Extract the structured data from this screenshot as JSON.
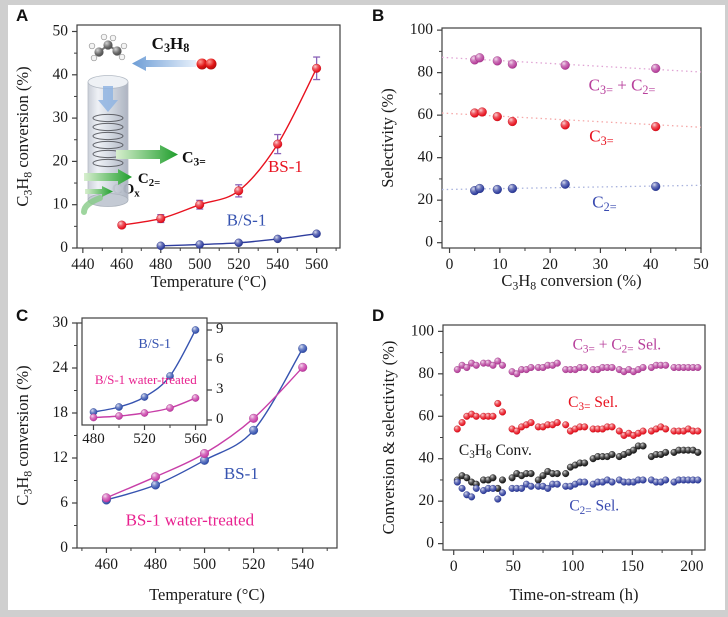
{
  "page": {
    "background": "#cfcfcf",
    "canvas_color": "#ffffff"
  },
  "chart_data": [
    {
      "panel_label": "A",
      "type": "line",
      "xlabel": "Temperature (°C)",
      "ylabel": "C_{3}H_{8} conversion (%)",
      "xlim": [
        437,
        572
      ],
      "ylim": [
        0,
        51.5
      ],
      "xticks": [
        440,
        460,
        480,
        500,
        520,
        540,
        560
      ],
      "yticks": [
        0,
        10,
        20,
        30,
        40,
        50
      ],
      "xminor": 10,
      "yminor": 5,
      "series": [
        {
          "name": "BS-1",
          "color": "#e8121f",
          "line": true,
          "smooth": true,
          "r": 4.3,
          "x": [
            460,
            480,
            500,
            520,
            540,
            560
          ],
          "y": [
            5.3,
            6.8,
            10.0,
            13.2,
            24.0,
            41.5
          ],
          "err": [
            0.6,
            0.9,
            1.0,
            1.4,
            2.2,
            2.6
          ],
          "err_color": "#8a63b8"
        },
        {
          "name": "B/S-1",
          "color": "#2e3d9e",
          "line": true,
          "smooth": true,
          "r": 4.0,
          "x": [
            480,
            500,
            520,
            540,
            560
          ],
          "y": [
            0.5,
            0.8,
            1.2,
            2.1,
            3.3
          ]
        }
      ],
      "annotations": [
        {
          "text": "C_{3}H_{8}",
          "x": 485,
          "y": 46.0,
          "color": "#111111",
          "size": 17,
          "bold": true
        },
        {
          "text": "C_{3=}",
          "x": 497,
          "y": 19.8,
          "color": "#111111",
          "size": 16,
          "bold": true
        },
        {
          "text": "C_{2=}",
          "x": 474,
          "y": 15.0,
          "color": "#111111",
          "size": 15,
          "bold": true
        },
        {
          "text": "CO_{x}",
          "x": 462,
          "y": 12.6,
          "color": "#111111",
          "size": 15,
          "bold": true
        },
        {
          "text": "BS-1",
          "x": 544,
          "y": 17.5,
          "color": "#e8121f",
          "size": 17
        },
        {
          "text": "B/S-1",
          "x": 524,
          "y": 5.2,
          "color": "#3653b0",
          "size": 17
        }
      ]
    },
    {
      "panel_label": "B",
      "type": "scatter",
      "xlabel": "C_{3}H_{8} conversion (%)",
      "ylabel": "Selectivity (%)",
      "xlim": [
        -1.5,
        50
      ],
      "ylim": [
        -2.5,
        101
      ],
      "xticks": [
        0,
        10,
        20,
        30,
        40,
        50
      ],
      "yticks": [
        0,
        20,
        40,
        60,
        80,
        100
      ],
      "xminor": 5,
      "yminor": 10,
      "series": [
        {
          "name": "C3= + C2=",
          "color": "#b8409c",
          "r": 4.4,
          "x": [
            5,
            6,
            9.5,
            12.5,
            23,
            41
          ],
          "y": [
            86,
            87,
            85.5,
            84,
            83.5,
            82
          ],
          "trend": {
            "x": [
              -1.5,
              50
            ],
            "y": [
              87.2,
              80.3
            ],
            "color": "#e0a4d4"
          }
        },
        {
          "name": "C3=",
          "color": "#e8121f",
          "r": 4.4,
          "x": [
            5,
            6.5,
            9.5,
            12.5,
            23,
            41
          ],
          "y": [
            61,
            61.5,
            59.3,
            57,
            55.4,
            54.6
          ],
          "trend": {
            "x": [
              -1.5,
              50
            ],
            "y": [
              61,
              54.3
            ],
            "color": "#f5a8a8"
          }
        },
        {
          "name": "C2=",
          "color": "#2e3d9e",
          "r": 4.4,
          "x": [
            5,
            6,
            9.5,
            12.5,
            23,
            41
          ],
          "y": [
            24.5,
            25.5,
            25,
            25.5,
            27.5,
            26.5
          ],
          "trend": {
            "x": [
              -1.5,
              50
            ],
            "y": [
              25,
              27
            ],
            "color": "#a8b2dd"
          }
        }
      ],
      "annotations": [
        {
          "text": "C_{3=} + C_{2=}",
          "x": 34.3,
          "y": 71.5,
          "color": "#b8409c",
          "size": 17
        },
        {
          "text": "C_{3=}",
          "x": 30.2,
          "y": 47.5,
          "color": "#e8121f",
          "size": 17
        },
        {
          "text": "C_{2=}",
          "x": 30.8,
          "y": 16.5,
          "color": "#3a4bb0",
          "size": 17
        }
      ]
    },
    {
      "panel_label": "C",
      "type": "line",
      "xlabel": "Temperature (°C)",
      "ylabel": "C_{3}H_{8} conversion (%)",
      "xlim": [
        448,
        554
      ],
      "ylim": [
        0,
        30
      ],
      "xticks": [
        460,
        480,
        500,
        520,
        540
      ],
      "yticks": [
        0,
        6,
        12,
        18,
        24,
        30
      ],
      "xminor": 10,
      "yminor": 3,
      "series": [
        {
          "name": "BS-1",
          "color": "#3653b0",
          "line": true,
          "smooth": true,
          "r": 4.3,
          "x": [
            460,
            480,
            500,
            520,
            540
          ],
          "y": [
            6.4,
            8.4,
            11.7,
            15.7,
            26.6
          ]
        },
        {
          "name": "BS-1 water-treated",
          "color": "#c83fa8",
          "line": true,
          "smooth": true,
          "r": 4.3,
          "x": [
            460,
            480,
            500,
            520,
            540
          ],
          "y": [
            6.7,
            9.5,
            12.6,
            17.3,
            24.1
          ]
        }
      ],
      "annotations": [
        {
          "text": "BS-1",
          "x": 515,
          "y": 9.2,
          "color": "#3653b0",
          "size": 17
        },
        {
          "text": "BS-1 water-treated",
          "x": 494,
          "y": 3.0,
          "color": "#e8218f",
          "size": 17
        }
      ]
    },
    {
      "panel_label": "C-inset",
      "type": "line",
      "xlabel": "",
      "ylabel": "",
      "yaxis": "right",
      "bg": "#ffffff",
      "tick_size": 15,
      "xlim": [
        471,
        569
      ],
      "ylim": [
        -0.5,
        10.2
      ],
      "xticks": [
        480,
        520,
        560
      ],
      "yticks": [
        0,
        3,
        6,
        9
      ],
      "xminor": 20,
      "yminor": 0,
      "series": [
        {
          "name": "B/S-1",
          "color": "#3653b0",
          "line": true,
          "smooth": true,
          "r": 3.6,
          "x": [
            480,
            500,
            520,
            540,
            560
          ],
          "y": [
            0.8,
            1.3,
            2.3,
            4.4,
            9.0
          ]
        },
        {
          "name": "B/S-1 water-treated",
          "color": "#c83fa8",
          "line": true,
          "smooth": true,
          "r": 3.6,
          "x": [
            480,
            500,
            520,
            540,
            560
          ],
          "y": [
            0.25,
            0.4,
            0.7,
            1.2,
            2.2
          ]
        }
      ],
      "annotations": [
        {
          "text": "B/S-1",
          "x": 528,
          "y": 7.2,
          "color": "#3653b0",
          "size": 14
        },
        {
          "text": "B/S-1 water-treated",
          "x": 521,
          "y": 3.6,
          "color": "#e8218f",
          "size": 13
        }
      ]
    },
    {
      "panel_label": "D",
      "type": "scatter",
      "xlabel": "Time-on-stream (h)",
      "ylabel": "Conversion & selectivity (%)",
      "xlim": [
        -9,
        211
      ],
      "ylim": [
        -3,
        103
      ],
      "xticks": [
        0,
        50,
        100,
        150,
        200
      ],
      "yticks": [
        0,
        20,
        40,
        60,
        80,
        100
      ],
      "xminor": 25,
      "yminor": 10,
      "series": [
        {
          "name": "C3= + C2= Sel.",
          "color": "#b8409c",
          "r": 3.3,
          "x": [
            3,
            7,
            11,
            15,
            19,
            25,
            29,
            33,
            37,
            41,
            49,
            53,
            57,
            61,
            65,
            71,
            75,
            79,
            83,
            87,
            94,
            98,
            102,
            106,
            110,
            117,
            121,
            125,
            129,
            133,
            139,
            143,
            147,
            151,
            155,
            159,
            166,
            170,
            174,
            178,
            185,
            189,
            193,
            197,
            201,
            205
          ],
          "y": [
            82,
            84,
            83,
            85,
            84,
            85,
            85,
            84,
            86,
            84,
            81,
            80,
            82,
            82,
            83,
            83,
            83,
            84,
            84,
            85,
            82,
            82,
            82,
            83,
            83,
            82,
            82,
            83,
            83,
            83,
            82,
            81,
            82,
            81,
            82,
            83,
            83,
            84,
            84,
            84,
            83,
            83,
            83,
            83,
            83,
            83
          ]
        },
        {
          "name": "C3= Sel.",
          "color": "#e8121f",
          "r": 3.3,
          "x": [
            3,
            7,
            11,
            15,
            19,
            25,
            29,
            33,
            37,
            41,
            49,
            53,
            57,
            61,
            65,
            71,
            75,
            79,
            83,
            87,
            94,
            98,
            102,
            106,
            110,
            117,
            121,
            125,
            129,
            133,
            139,
            143,
            147,
            151,
            155,
            159,
            166,
            170,
            174,
            178,
            185,
            189,
            193,
            197,
            201,
            205
          ],
          "y": [
            54,
            57,
            60,
            61,
            60,
            60,
            60,
            60,
            66,
            62,
            54,
            53,
            55,
            56,
            57,
            55,
            55,
            56,
            56,
            57,
            56,
            53,
            54,
            55,
            55,
            54,
            54,
            54,
            55,
            55,
            53,
            51,
            52,
            51,
            52,
            53,
            53,
            54,
            55,
            54,
            53,
            53,
            53,
            54,
            53,
            53
          ]
        },
        {
          "name": "C3H8 Conv.",
          "color": "#1a1a1a",
          "r": 3.3,
          "x": [
            3,
            7,
            11,
            15,
            19,
            25,
            29,
            33,
            37,
            41,
            49,
            53,
            57,
            61,
            65,
            71,
            75,
            79,
            83,
            87,
            94,
            98,
            102,
            106,
            110,
            117,
            121,
            125,
            129,
            133,
            139,
            143,
            147,
            151,
            155,
            159,
            166,
            170,
            174,
            178,
            185,
            189,
            193,
            197,
            201,
            205
          ],
          "y": [
            30,
            32,
            31,
            29,
            28,
            30,
            30,
            31,
            26,
            30,
            31,
            33,
            32,
            33,
            33,
            30,
            32,
            34,
            33,
            33,
            33,
            36,
            37,
            38,
            38,
            40,
            41,
            41,
            41,
            42,
            41,
            42,
            43,
            44,
            46,
            46,
            41,
            42,
            42,
            43,
            43,
            44,
            44,
            44,
            44,
            43
          ]
        },
        {
          "name": "C2= Sel.",
          "color": "#2e3d9e",
          "r": 3.3,
          "x": [
            3,
            7,
            11,
            15,
            19,
            25,
            29,
            33,
            37,
            41,
            49,
            53,
            57,
            61,
            65,
            71,
            75,
            79,
            83,
            87,
            94,
            98,
            102,
            106,
            110,
            117,
            121,
            125,
            129,
            133,
            139,
            143,
            147,
            151,
            155,
            159,
            166,
            170,
            174,
            178,
            185,
            189,
            193,
            197,
            201,
            205
          ],
          "y": [
            29,
            26,
            23,
            22,
            26,
            25,
            26,
            26,
            21,
            24,
            26,
            26,
            26,
            28,
            27,
            27,
            27,
            26,
            28,
            28,
            27,
            27,
            28,
            29,
            29,
            28,
            29,
            29,
            30,
            29,
            30,
            29,
            29,
            29,
            30,
            30,
            30,
            29,
            29,
            30,
            29,
            30,
            30,
            30,
            30,
            30
          ]
        }
      ],
      "annotations": [
        {
          "text": "C_{3=} + C_{2=} Sel.",
          "x": 137,
          "y": 91.5,
          "color": "#b8409c",
          "size": 15.5
        },
        {
          "text": "C_{3=} Sel.",
          "x": 117,
          "y": 64.3,
          "color": "#e8121f",
          "size": 15.5
        },
        {
          "text": "C_{3}H_{8} Conv.",
          "x": 35,
          "y": 41.8,
          "color": "#1a1a1a",
          "size": 15.5
        },
        {
          "text": "C_{2=} Sel.",
          "x": 118,
          "y": 15.5,
          "color": "#3a4bb0",
          "size": 15.5
        }
      ]
    }
  ],
  "reactor_diagram": {
    "feed_molecule": "propane",
    "oxidant_molecule": "O2",
    "products": [
      "C3=",
      "C2=",
      "COx"
    ]
  }
}
